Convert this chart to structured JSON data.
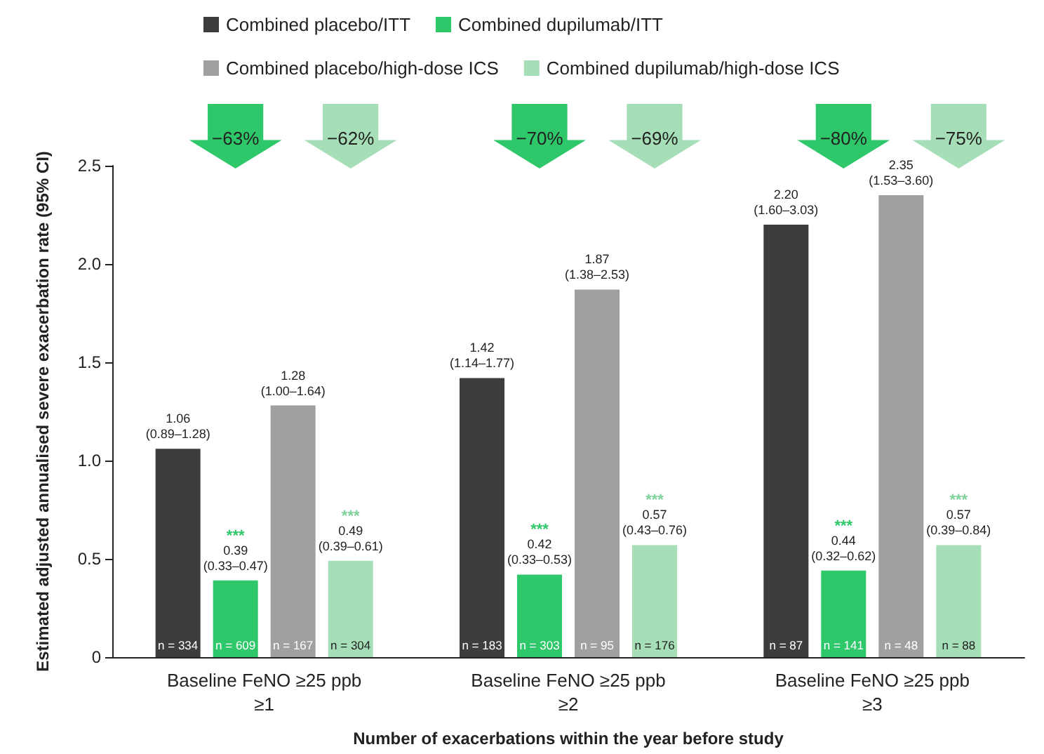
{
  "chart_data": {
    "type": "bar",
    "xlabel": "Number of exacerbations within the year before study",
    "ylabel": "Estimated adjusted annualised severe exacerbation rate (95% CI)",
    "categories": [
      "Baseline FeNO ≥25 ppb\n≥1",
      "Baseline FeNO ≥25 ppb\n≥2",
      "Baseline FeNO ≥25 ppb\n≥3"
    ],
    "series": [
      {
        "name": "Combined placebo/ITT",
        "color": "#3d3d3d",
        "values": [
          1.06,
          1.42,
          2.2
        ],
        "value_labels": [
          "1.06\n(0.89–1.28)",
          "1.42\n(1.14–1.77)",
          "2.20\n(1.60–3.03)"
        ]
      },
      {
        "name": "Combined dupilumab/ITT",
        "color": "#2ec86a",
        "values": [
          0.39,
          0.42,
          0.44
        ],
        "value_labels": [
          "0.39\n(0.33–0.47)",
          "0.42\n(0.33–0.53)",
          "0.44\n(0.32–0.62)"
        ]
      },
      {
        "name": "Combined placebo/high-dose ICS",
        "color": "#a0a0a0",
        "values": [
          1.28,
          1.87,
          2.35
        ],
        "value_labels": [
          "1.28\n(1.00–1.64)",
          "1.87\n(1.38–2.53)",
          "2.35\n(1.53–3.60)"
        ]
      },
      {
        "name": "Combined dupilumab/high-dose ICS",
        "color": "#a6deb8",
        "values": [
          0.49,
          0.57,
          0.57
        ],
        "value_labels": [
          "0.49\n(0.39–0.61)",
          "0.57\n(0.43–0.76)",
          "0.57\n(0.39–0.84)"
        ]
      }
    ],
    "ylim": [
      0,
      2.5
    ],
    "yticks": [
      0,
      0.5,
      {
        "value": 1,
        "label": "1.0"
      },
      1.5,
      {
        "value": 2,
        "label": "2.0"
      },
      2.5
    ],
    "grid": false,
    "legend": "top",
    "annotations": [
      "−63%",
      "−62%",
      "−70%",
      "−69%",
      "−80%",
      "−75%",
      "***",
      "***",
      "***",
      "***",
      "***",
      "***",
      "n = 334",
      "n = 609",
      "n = 167",
      "n = 304",
      "n = 183",
      "n = 303",
      "n = 95",
      "n = 176",
      "n = 87",
      "n = 141",
      "n = 48",
      "n = 88"
    ]
  }
}
